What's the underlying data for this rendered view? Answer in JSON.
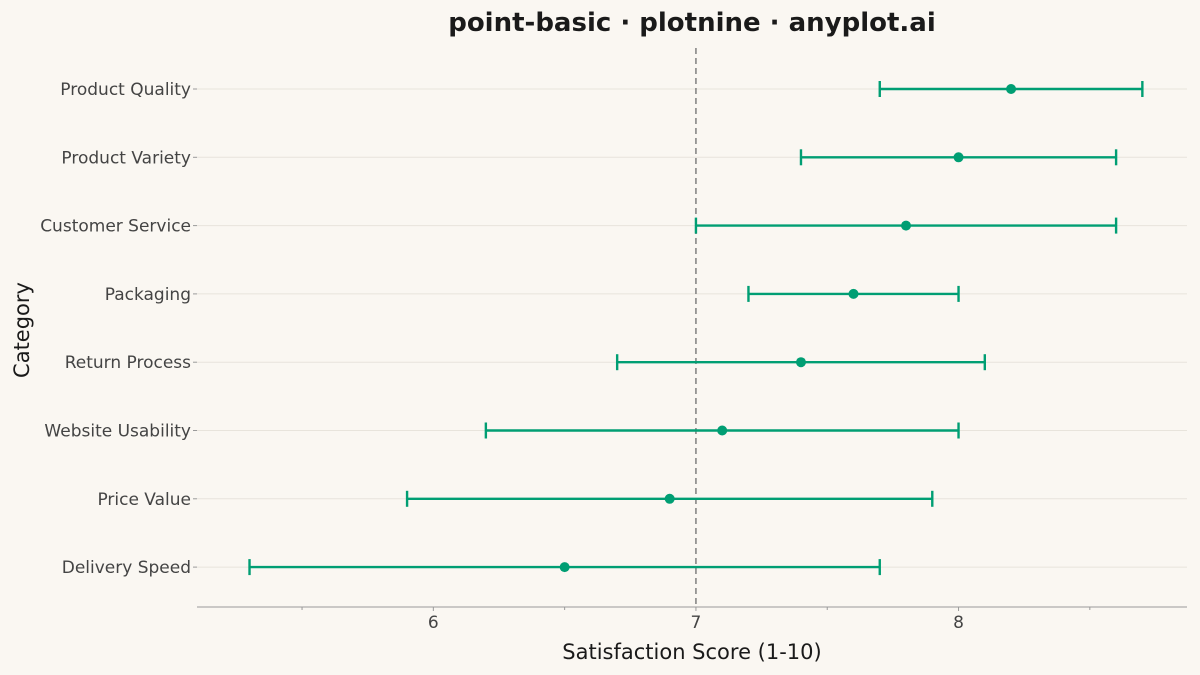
{
  "chart_data": {
    "type": "scatter",
    "title": "point-basic · plotnine · anyplot.ai",
    "xlabel": "Satisfaction Score (1-10)",
    "ylabel": "Category",
    "xlim": [
      5.1,
      8.87
    ],
    "x_ticks": [
      6,
      7,
      8
    ],
    "reference_line_x": 7,
    "grid": "horizontal major",
    "categories": [
      "Product Quality",
      "Product Variety",
      "Customer Service",
      "Packaging",
      "Return Process",
      "Website Usability",
      "Price Value",
      "Delivery Speed"
    ],
    "values": [
      8.2,
      8.0,
      7.8,
      7.6,
      7.4,
      7.1,
      6.9,
      6.5
    ],
    "lower": [
      7.7,
      7.4,
      7.0,
      7.2,
      6.7,
      6.2,
      5.9,
      5.3
    ],
    "upper": [
      8.7,
      8.6,
      8.6,
      8.0,
      8.1,
      8.0,
      7.9,
      7.7
    ],
    "colors": {
      "series": "#009E73",
      "reference": "#777777",
      "grid": "#E8E4DC",
      "axis": "#9A9A9A"
    }
  }
}
